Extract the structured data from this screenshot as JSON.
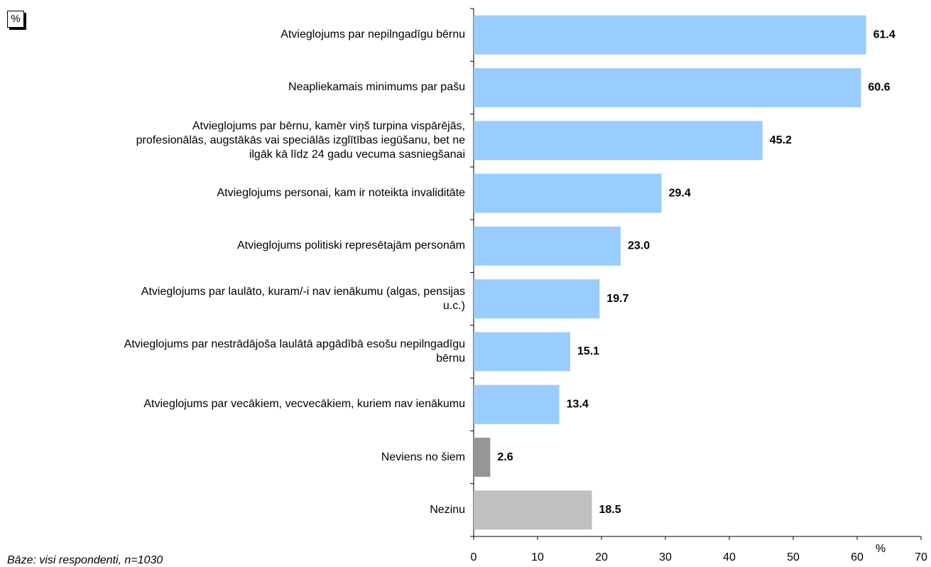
{
  "chart_data": {
    "type": "barh",
    "unit_box": "%",
    "xlabel": "%",
    "note": "Bāze: visi respondenti, n=1030",
    "categories": [
      "Atvieglojums par nepilngadīgu bērnu",
      "Neapliekamais minimums par pašu",
      "Atvieglojums par bērnu, kamēr viņš turpina vispārējās,\nprofesionālās, augstākās vai speciālās izglītības iegūšanu, bet ne\nilgāk kā līdz 24 gadu vecuma sasniegšanai",
      "Atvieglojums personai, kam ir noteikta invaliditāte",
      "Atvieglojums politiski represētajām personām",
      "Atvieglojums par laulāto, kuram/-i nav ienākumu (algas, pensijas\nu.c.)",
      "Atvieglojums par nestrādājoša laulātā apgādībā esošu nepilngadīgu\nbērnu",
      "Atvieglojums par vecākiem, vecvecākiem, kuriem nav ienākumu",
      "Neviens no šiem",
      "Nezinu"
    ],
    "values": [
      61.4,
      60.6,
      45.2,
      29.4,
      23.0,
      19.7,
      15.1,
      13.4,
      2.6,
      18.5
    ],
    "value_labels": [
      "61.4",
      "60.6",
      "45.2",
      "29.4",
      "23.0",
      "19.7",
      "15.1",
      "13.4",
      "2.6",
      "18.5"
    ],
    "colors": [
      "#99ccff",
      "#99ccff",
      "#99ccff",
      "#99ccff",
      "#99ccff",
      "#99ccff",
      "#99ccff",
      "#99ccff",
      "#969696",
      "#c0c0c0"
    ],
    "xlim": [
      0,
      70
    ],
    "xticks": [
      0,
      10,
      20,
      30,
      40,
      50,
      60,
      70
    ]
  }
}
